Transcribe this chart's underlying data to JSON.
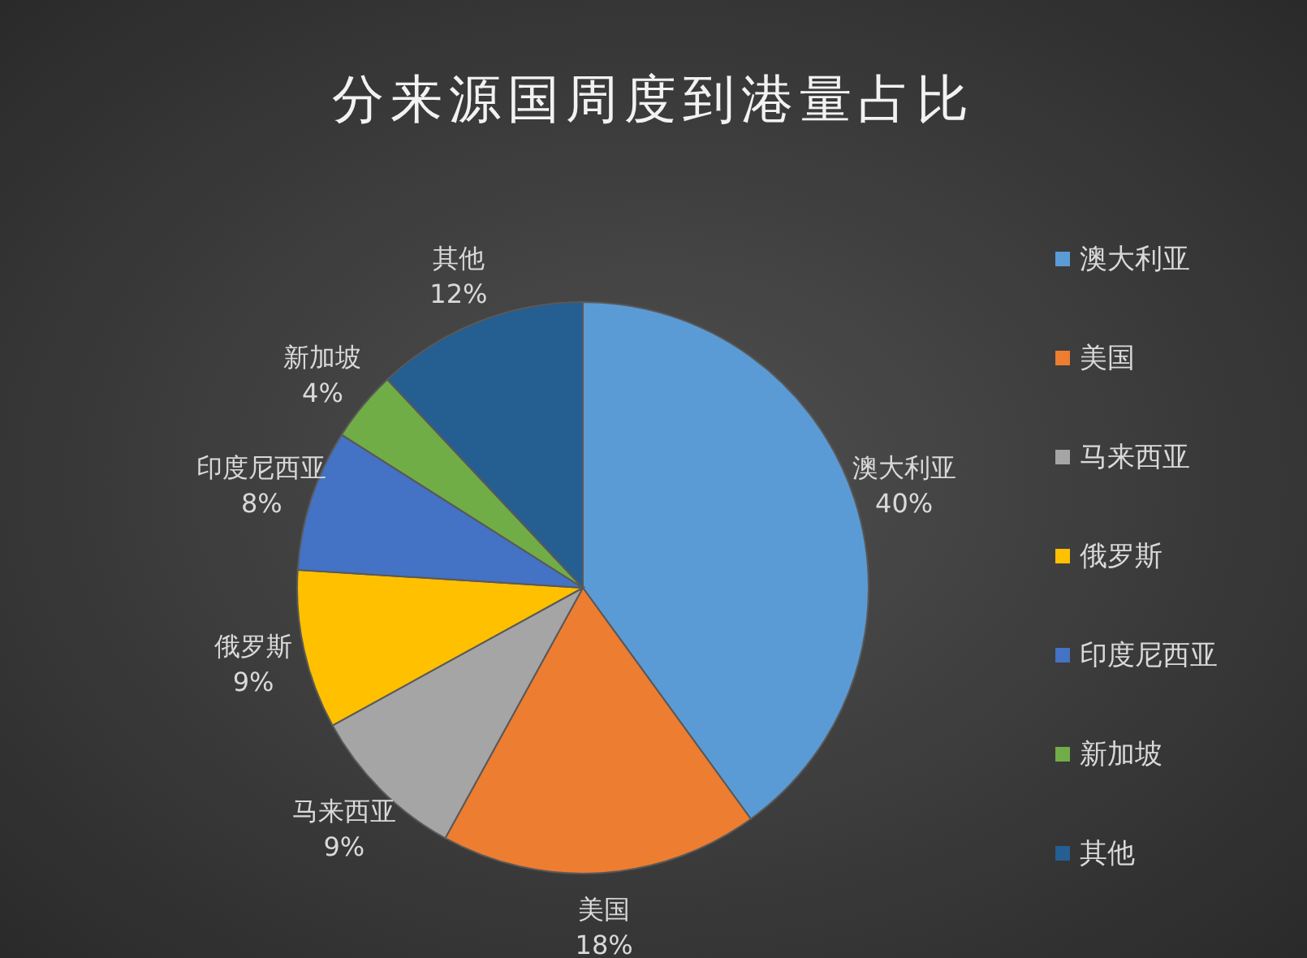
{
  "chart_data": {
    "type": "pie",
    "title": "分来源国周度到港量占比",
    "categories": [
      "澳大利亚",
      "美国",
      "马来西亚",
      "俄罗斯",
      "印度尼西亚",
      "新加坡",
      "其他"
    ],
    "values": [
      40,
      18,
      9,
      9,
      8,
      4,
      12
    ],
    "value_labels": [
      "40%",
      "18%",
      "9%",
      "9%",
      "8%",
      "4%",
      "12%"
    ],
    "colors": [
      "#5b9bd5",
      "#ed7d31",
      "#a5a5a5",
      "#ffc000",
      "#4472c4",
      "#70ad47",
      "#255e91"
    ],
    "legend": "right"
  }
}
